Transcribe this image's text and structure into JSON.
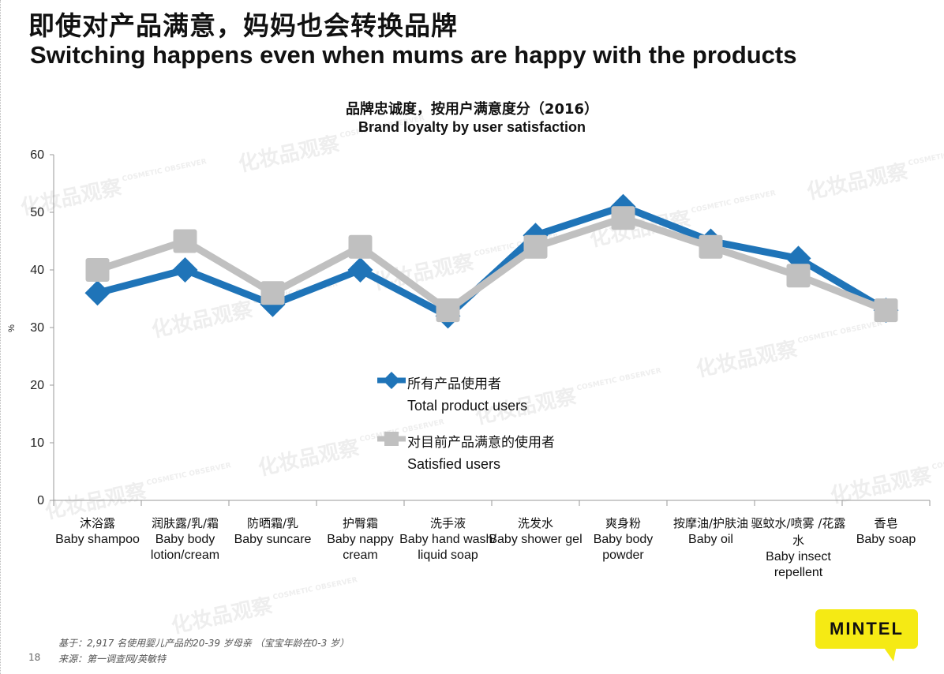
{
  "title_cn": "即使对产品满意，妈妈也会转换品牌",
  "title_en": "Switching happens even when mums are happy with the products",
  "chart_title_cn": "品牌忠诚度，按用户满意度分（2016）",
  "chart_title_en": "Brand loyalty by user satisfaction",
  "y_unit": "%",
  "legend": {
    "total_cn": "所有产品使用者",
    "total_en": "Total product users",
    "satisfied_cn": "对目前产品满意的使用者",
    "satisfied_en": "Satisfied users"
  },
  "footnotes": {
    "base": "基于：2,917 名使用婴儿产品的20-39 岁母亲 （宝宝年龄在0-3 岁）",
    "source": "来源：第一调查网/英敏特"
  },
  "page_number": "18",
  "logo_text": "MINTEL",
  "watermark": {
    "cn": "化妆品观察",
    "en": "COSMETIC OBSERVER"
  },
  "colors": {
    "total": "#1f74b8",
    "satisfied": "#c0c0c0",
    "logo": "#f5ea14"
  },
  "chart_data": {
    "type": "line",
    "y_unit": "%",
    "ylim": [
      0,
      60
    ],
    "yticks": [
      0,
      10,
      20,
      30,
      40,
      50,
      60
    ],
    "grid": false,
    "legend_position": "center",
    "categories": [
      {
        "cn": "沐浴露",
        "en": "Baby shampoo"
      },
      {
        "cn": "润肤露/乳/霜",
        "en": "Baby body lotion/cream"
      },
      {
        "cn": "防晒霜/乳",
        "en": "Baby suncare"
      },
      {
        "cn": "护臀霜",
        "en": "Baby nappy cream"
      },
      {
        "cn": "洗手液",
        "en": "Baby hand wash/ liquid soap"
      },
      {
        "cn": "洗发水",
        "en": "Baby shower gel"
      },
      {
        "cn": "爽身粉",
        "en": "Baby body powder"
      },
      {
        "cn": "按摩油/护肤油",
        "en": "Baby oil"
      },
      {
        "cn": "驱蚊水/喷雾 /花露水",
        "en": "Baby insect repellent"
      },
      {
        "cn": "香皂",
        "en": "Baby soap"
      }
    ],
    "series": [
      {
        "name": "所有产品使用者 Total product users",
        "color": "#1f74b8",
        "marker": "diamond",
        "values": [
          36,
          40,
          34,
          40,
          32,
          46,
          51,
          45,
          42,
          33
        ]
      },
      {
        "name": "对目前产品满意的使用者 Satisfied users",
        "color": "#c0c0c0",
        "marker": "square",
        "values": [
          40,
          45,
          36,
          44,
          33,
          44,
          49,
          44,
          39,
          33
        ]
      }
    ]
  }
}
